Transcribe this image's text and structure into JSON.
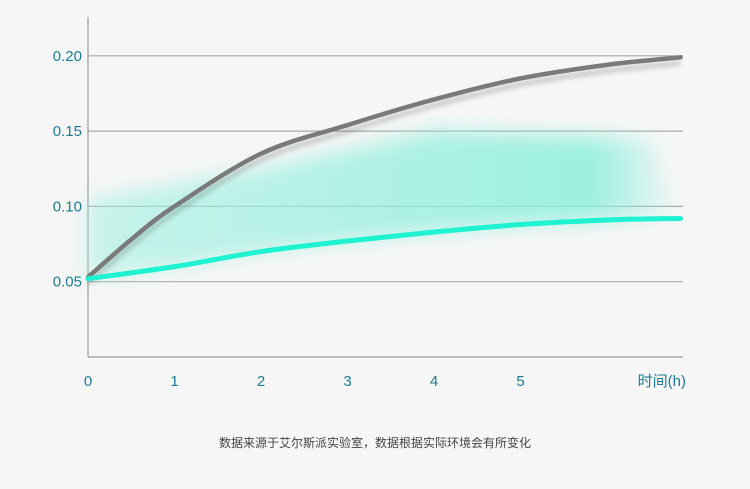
{
  "chart_data": {
    "type": "line",
    "title": "",
    "xlabel": "时间(h)",
    "ylabel": "",
    "x_ticks": [
      "0",
      "1",
      "2",
      "3",
      "4",
      "5"
    ],
    "y_ticks": [
      "0.05",
      "0.10",
      "0.15",
      "0.20"
    ],
    "xlim": [
      0,
      6.87
    ],
    "ylim": [
      0,
      0.22
    ],
    "grid": "horizontal",
    "legend": "none",
    "series": [
      {
        "color": "#7a7a7a",
        "x": [
          0,
          0.5,
          1,
          2,
          3,
          4,
          5,
          6,
          6.85
        ],
        "y": [
          0.053,
          0.078,
          0.1,
          0.135,
          0.154,
          0.171,
          0.185,
          0.194,
          0.199
        ]
      },
      {
        "color": "#1ef2d0",
        "x": [
          0,
          1,
          2,
          3,
          4,
          5,
          6,
          6.85
        ],
        "y": [
          0.052,
          0.06,
          0.07,
          0.077,
          0.083,
          0.088,
          0.091,
          0.092
        ]
      }
    ],
    "shaded_area_color": "#9ff0e0"
  },
  "footnote": "数据来源于艾尔斯派实验室，数据根据实际环境会有所变化"
}
